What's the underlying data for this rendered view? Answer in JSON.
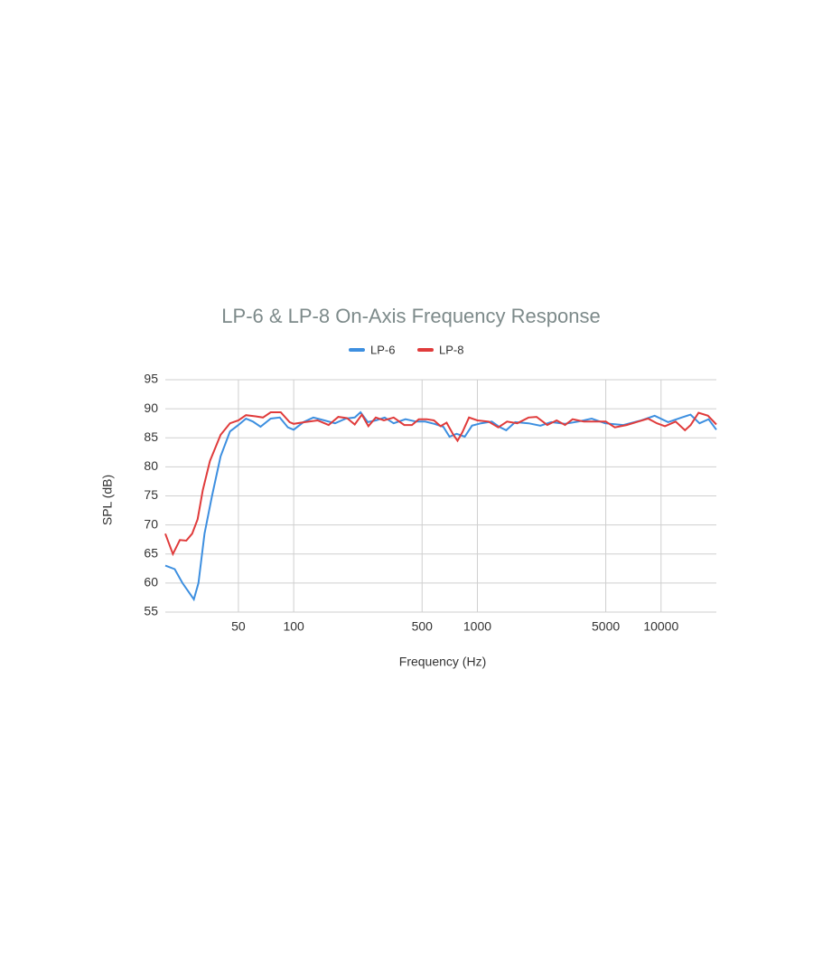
{
  "chart_data": {
    "type": "line",
    "title": "LP-6 & LP-8 On-Axis Frequency Response",
    "x_label": "Frequency (Hz)",
    "y_label": "SPL (dB)",
    "xlim": [
      20,
      20000
    ],
    "ylim": [
      55,
      95
    ],
    "log_x": true,
    "grid": true,
    "xticks": [
      50,
      100,
      500,
      1000,
      5000,
      10000
    ],
    "yticks": [
      55,
      60,
      65,
      70,
      75,
      80,
      85,
      90,
      95
    ],
    "legend": "top",
    "series": [
      {
        "name": "LP-6",
        "color": "#3d8fe0",
        "x": [
          20,
          22.5,
          24.8,
          26.9,
          28.6,
          30.3,
          32.7,
          35.9,
          40,
          45,
          50,
          55,
          60,
          66,
          75,
          84,
          93,
          100,
          113,
          128,
          147,
          168,
          192,
          215,
          231,
          253,
          280,
          313,
          350,
          406,
          464,
          520,
          582,
          652,
          705,
          771,
          854,
          935,
          1046,
          1198,
          1311,
          1435,
          1607,
          1902,
          2202,
          2523,
          2987,
          3538,
          4190,
          4962,
          6227,
          7817,
          9230,
          10930,
          12930,
          14470,
          16200,
          18140,
          20000
        ],
        "values": [
          63.0,
          62.4,
          60.0,
          58.4,
          57.2,
          60.0,
          68.5,
          75.0,
          81.8,
          86.1,
          87.2,
          88.3,
          87.8,
          86.9,
          88.3,
          88.5,
          86.8,
          86.4,
          87.7,
          88.5,
          88.0,
          87.5,
          88.3,
          88.5,
          89.4,
          87.7,
          88.0,
          88.5,
          87.5,
          88.2,
          87.8,
          87.8,
          87.4,
          86.9,
          85.2,
          85.7,
          85.2,
          87.1,
          87.5,
          87.8,
          86.9,
          86.3,
          87.7,
          87.5,
          87.1,
          87.7,
          87.4,
          87.8,
          88.3,
          87.5,
          87.2,
          88.0,
          88.8,
          87.7,
          88.5,
          89.0,
          87.5,
          88.2,
          86.4
        ]
      },
      {
        "name": "LP-8",
        "color": "#e03b3b",
        "x": [
          20,
          22,
          24,
          26,
          28,
          30,
          32,
          35,
          40,
          45,
          50,
          55,
          62,
          68,
          75,
          85,
          95,
          100,
          115,
          135,
          155,
          175,
          195,
          215,
          235,
          255,
          280,
          310,
          350,
          400,
          440,
          480,
          530,
          580,
          630,
          680,
          740,
          780,
          830,
          900,
          1000,
          1150,
          1300,
          1450,
          1650,
          1900,
          2100,
          2400,
          2700,
          3000,
          3300,
          3800,
          4500,
          5000,
          5600,
          6500,
          7500,
          8500,
          9500,
          10500,
          12000,
          13500,
          14500,
          16000,
          18000,
          20000
        ],
        "values": [
          68.5,
          65.0,
          67.4,
          67.3,
          68.5,
          71.0,
          76.0,
          81.0,
          85.5,
          87.5,
          88.0,
          88.9,
          88.7,
          88.5,
          89.4,
          89.4,
          87.7,
          87.4,
          87.7,
          88.0,
          87.2,
          88.6,
          88.4,
          87.3,
          89.0,
          87.0,
          88.5,
          88.0,
          88.5,
          87.2,
          87.2,
          88.2,
          88.2,
          88.0,
          87.0,
          87.6,
          85.5,
          84.5,
          86.0,
          88.5,
          88.0,
          87.8,
          86.8,
          87.8,
          87.5,
          88.5,
          88.6,
          87.2,
          88.0,
          87.2,
          88.2,
          87.8,
          87.8,
          87.8,
          86.8,
          87.2,
          87.8,
          88.3,
          87.5,
          87.0,
          87.8,
          86.3,
          87.2,
          89.3,
          88.8,
          87.3
        ]
      }
    ]
  }
}
